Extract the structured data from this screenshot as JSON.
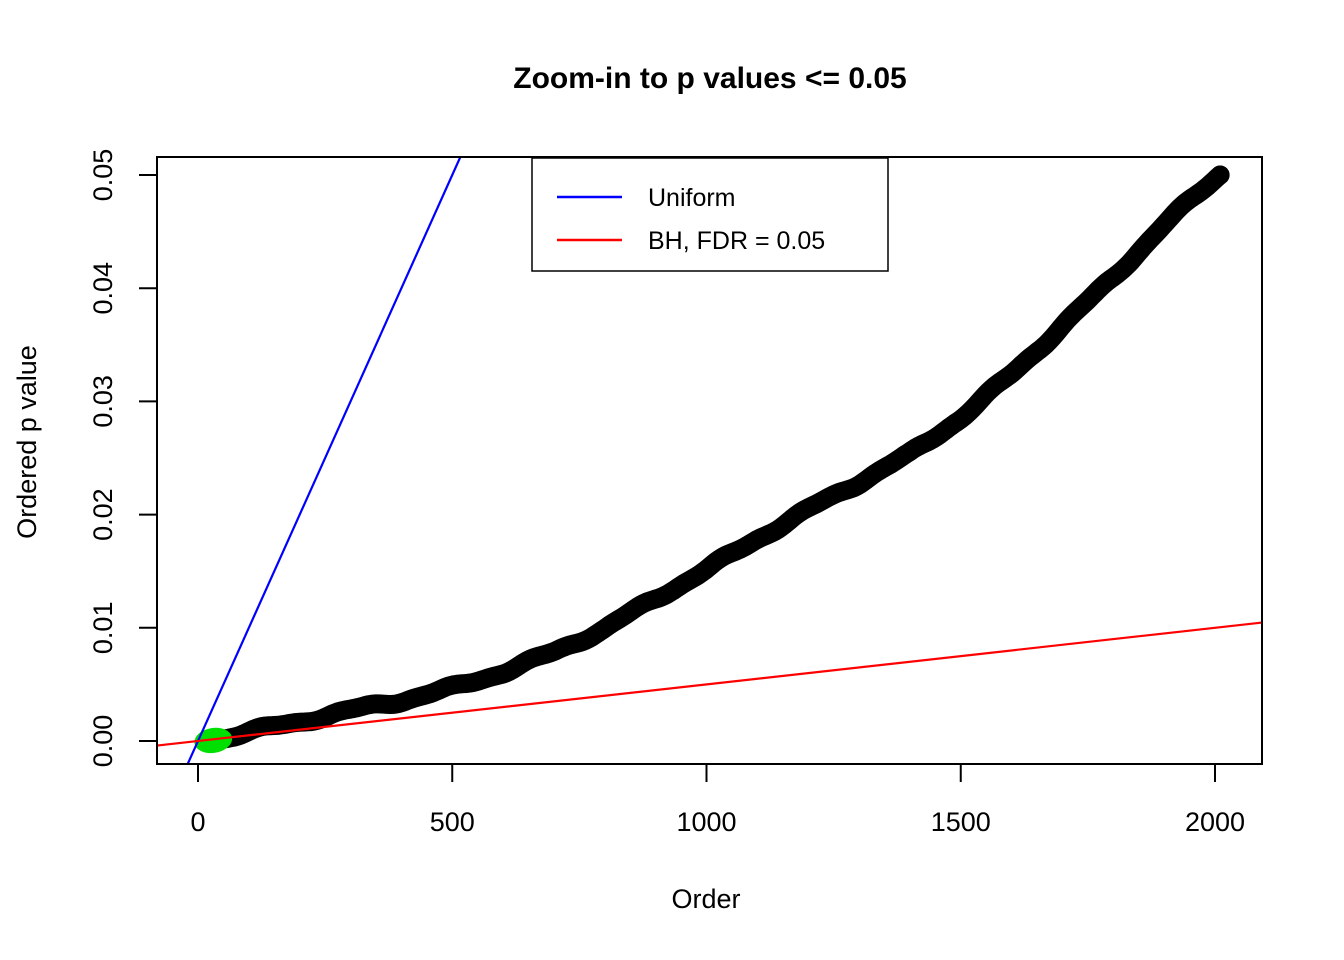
{
  "title": "Zoom-in to p values <= 0.05",
  "chart_data": {
    "type": "scatter",
    "title": "Zoom-in to p values <= 0.05",
    "xlabel": "Order",
    "ylabel": "Ordered p value",
    "xlim": [
      -80,
      2100
    ],
    "ylim": [
      -0.002,
      0.0516
    ],
    "x_ticks": [
      0,
      500,
      1000,
      1500,
      2000
    ],
    "y_ticks": [
      "0.00",
      "0.01",
      "0.02",
      "0.03",
      "0.04",
      "0.05"
    ],
    "grid": false,
    "background": "#ffffff",
    "series": [
      {
        "name": "ordered-p-values",
        "type": "points-dense-curve",
        "color": "#000000",
        "n_points": 2010,
        "description": "Ordered p values <= 0.05 plotted against rank; ~2010 overlapping filled circles forming a thick convex band from (1,~0) to (2010,0.05)",
        "control_points": [
          [
            20,
            0.00015
          ],
          [
            55,
            0.0004
          ],
          [
            100,
            0.0008
          ],
          [
            200,
            0.0016
          ],
          [
            300,
            0.0026
          ],
          [
            400,
            0.0036
          ],
          [
            500,
            0.0048
          ],
          [
            600,
            0.0062
          ],
          [
            700,
            0.0078
          ],
          [
            800,
            0.0098
          ],
          [
            900,
            0.0125
          ],
          [
            1000,
            0.0152
          ],
          [
            1100,
            0.018
          ],
          [
            1200,
            0.0205
          ],
          [
            1300,
            0.0228
          ],
          [
            1400,
            0.0252
          ],
          [
            1500,
            0.0285
          ],
          [
            1600,
            0.0325
          ],
          [
            1700,
            0.0368
          ],
          [
            1800,
            0.041
          ],
          [
            1900,
            0.0455
          ],
          [
            2010,
            0.05
          ]
        ],
        "last_point": [
          2010,
          0.05
        ]
      },
      {
        "name": "bh-significant-points",
        "type": "points-cluster",
        "color": "#00E000",
        "description": "BH-significant p values (green) clustered near the origin",
        "order_range": [
          1,
          55
        ],
        "p_range": [
          0.0,
          0.0004
        ],
        "center": [
          30,
          5e-05
        ]
      },
      {
        "name": "uniform-line",
        "type": "abline",
        "color": "#0000FF",
        "label": "Uniform",
        "slope_p_per_order": 0.0001,
        "intercept": 0
      },
      {
        "name": "bh-line",
        "type": "abline",
        "color": "#FF0000",
        "label": "BH, FDR = 0.05",
        "slope_p_per_order": 5e-06,
        "intercept": 0
      }
    ],
    "legend": {
      "position": "top-center",
      "entries": [
        {
          "label": "Uniform",
          "color": "#0000FF"
        },
        {
          "label": "BH, FDR = 0.05",
          "color": "#FF0000"
        }
      ]
    }
  }
}
